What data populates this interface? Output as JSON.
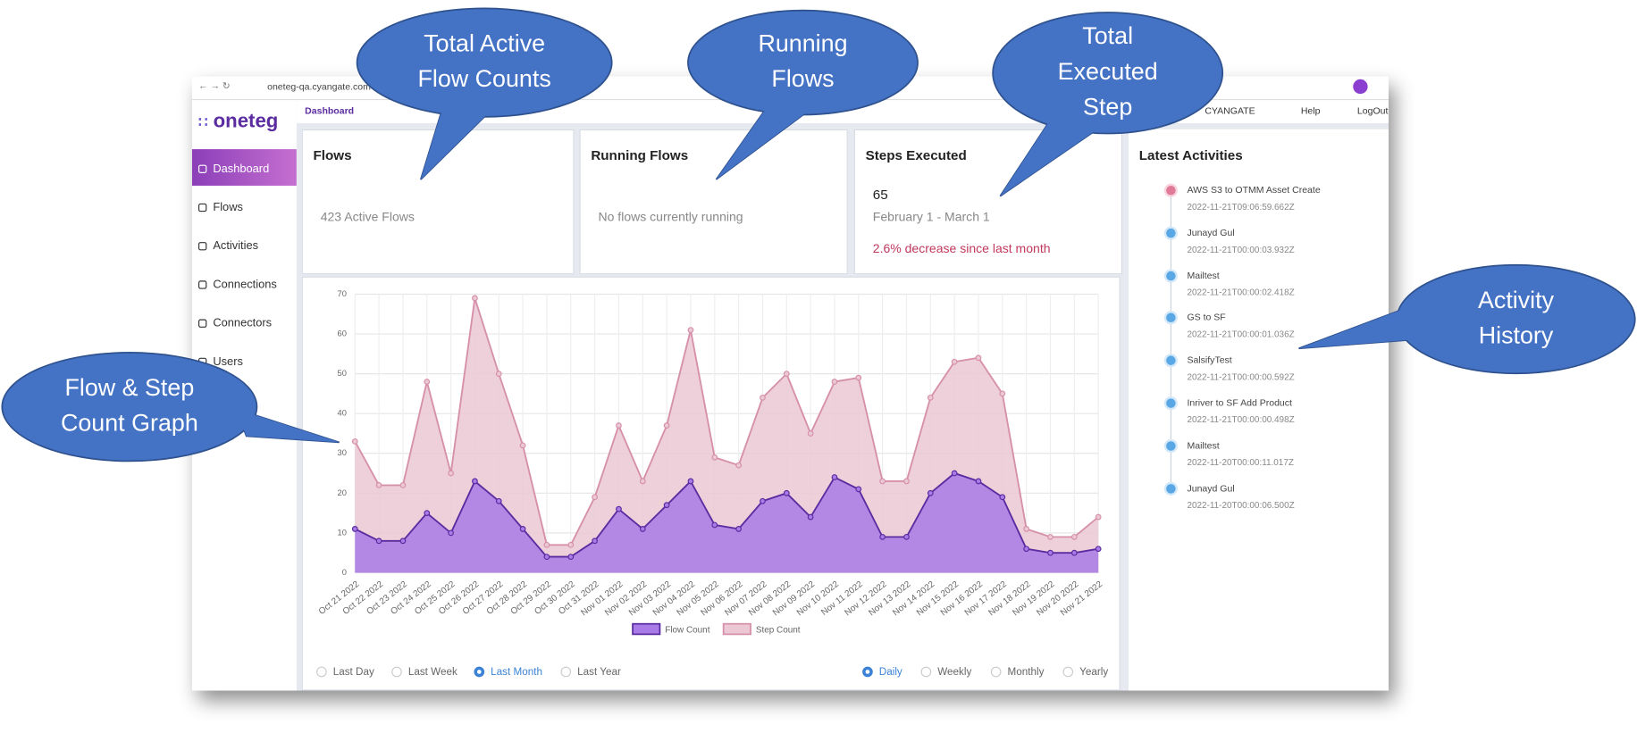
{
  "browser": {
    "url": "oneteg-qa.cyangate.com"
  },
  "sidebar": {
    "logo": "oneteg",
    "menu": [
      "Dashboard",
      "Flows",
      "Activities",
      "Connections",
      "Connectors",
      "Users"
    ]
  },
  "topbar": {
    "breadcrumb": "Dashboard",
    "org": "CYANGATE",
    "help": "Help",
    "logout": "LogOut"
  },
  "cards": [
    {
      "title": "Flows",
      "text": "423 Active Flows"
    },
    {
      "title": "Running Flows",
      "text": "No flows currently running"
    },
    {
      "title": "Steps Executed",
      "value": 65,
      "period": "February 1 - March 1",
      "change": "2.6% decrease since last month"
    }
  ],
  "chart_data": {
    "type": "area",
    "categories": [
      "Oct 21 2022",
      "Oct 22 2022",
      "Oct 23 2022",
      "Oct 24 2022",
      "Oct 25 2022",
      "Oct 26 2022",
      "Oct 27 2022",
      "Oct 28 2022",
      "Oct 29 2022",
      "Oct 30 2022",
      "Oct 31 2022",
      "Nov 01 2022",
      "Nov 02 2022",
      "Nov 03 2022",
      "Nov 04 2022",
      "Nov 05 2022",
      "Nov 06 2022",
      "Nov 07 2022",
      "Nov 08 2022",
      "Nov 09 2022",
      "Nov 10 2022",
      "Nov 11 2022",
      "Nov 12 2022",
      "Nov 13 2022",
      "Nov 14 2022",
      "Nov 15 2022",
      "Nov 16 2022",
      "Nov 17 2022",
      "Nov 18 2022",
      "Nov 19 2022",
      "Nov 20 2022",
      "Nov 21 2022"
    ],
    "series": [
      {
        "name": "Step Count",
        "color": "#d690aa",
        "fill": "#ebc8d4",
        "values": [
          33,
          22,
          22,
          48,
          25,
          69,
          50,
          32,
          7,
          7,
          19,
          37,
          23,
          37,
          61,
          29,
          27,
          44,
          50,
          35,
          48,
          49,
          23,
          23,
          44,
          53,
          54,
          45,
          11,
          9,
          9,
          14
        ]
      },
      {
        "name": "Flow Count",
        "color": "#5b2ca0",
        "fill": "#a87be6",
        "values": [
          11,
          8,
          8,
          15,
          10,
          23,
          18,
          11,
          4,
          4,
          8,
          16,
          11,
          17,
          23,
          12,
          11,
          18,
          20,
          14,
          24,
          21,
          9,
          9,
          20,
          25,
          23,
          19,
          6,
          5,
          5,
          6
        ]
      }
    ],
    "legend_order": [
      1,
      0
    ],
    "ylim": [
      0,
      70
    ],
    "yticks": [
      0,
      10,
      20,
      30,
      40,
      50,
      60,
      70
    ],
    "grid": true
  },
  "filters": {
    "range": [
      "Last Day",
      "Last Week",
      "Last Month",
      "Last Year"
    ],
    "range_selected": 2,
    "interval": [
      "Daily",
      "Weekly",
      "Monthly",
      "Yearly"
    ],
    "interval_selected": 0
  },
  "activities": {
    "title": "Latest Activities",
    "items": [
      {
        "name": "AWS S3 to OTMM Asset Create",
        "time": "2022-11-21T09:06:59.662Z"
      },
      {
        "name": "Junayd Gul",
        "time": "2022-11-21T00:00:03.932Z"
      },
      {
        "name": "Mailtest",
        "time": "2022-11-21T00:00:02.418Z"
      },
      {
        "name": "GS to SF",
        "time": "2022-11-21T00:00:01.036Z"
      },
      {
        "name": "SalsifyTest",
        "time": "2022-11-21T00:00:00.592Z"
      },
      {
        "name": "Inriver to SF Add Product",
        "time": "2022-11-21T00:00:00.498Z"
      },
      {
        "name": "Mailtest",
        "time": "2022-11-20T00:00:11.017Z"
      },
      {
        "name": "Junayd Gul",
        "time": "2022-11-20T00:00:06.500Z"
      }
    ]
  },
  "callouts": [
    {
      "lines": [
        "Total Active",
        "Flow Counts"
      ]
    },
    {
      "lines": [
        "Running",
        "Flows"
      ]
    },
    {
      "lines": [
        "Total",
        "Executed",
        "Step"
      ]
    },
    {
      "lines": [
        "Activity",
        "History"
      ]
    },
    {
      "lines": [
        "Flow & Step",
        "Count Graph"
      ]
    }
  ]
}
